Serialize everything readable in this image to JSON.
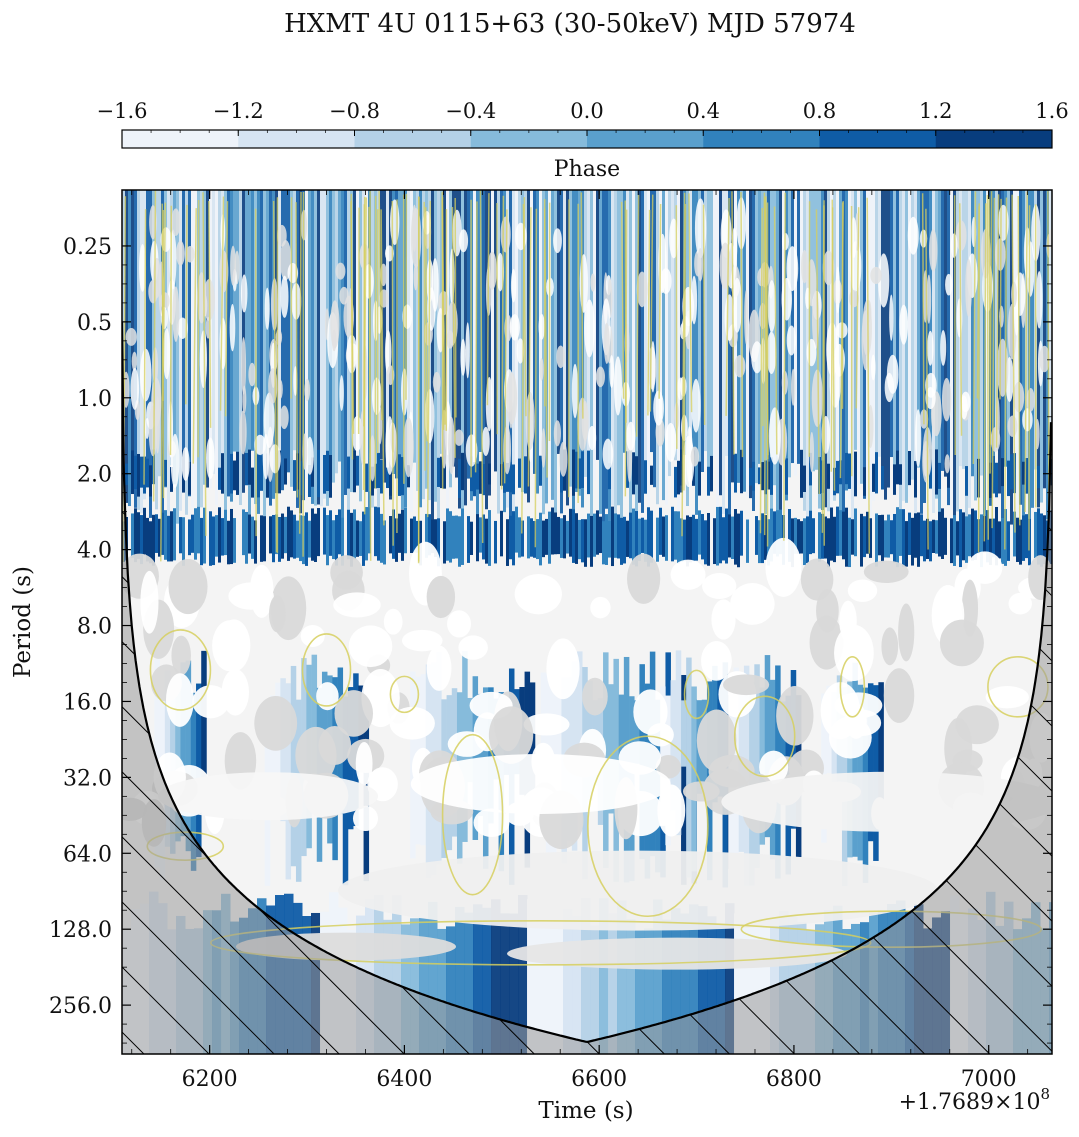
{
  "chart_data": {
    "type": "heatmap",
    "title": "HXMT 4U 0115+63 (30-50keV) MJD 57974",
    "xlabel": "Time (s)",
    "ylabel": "Period (s)",
    "x_offset_label": "+1.7689×10",
    "x_offset_exponent": "8",
    "xlim": [
      6110,
      7065
    ],
    "ylim_period": [
      0.15,
      400
    ],
    "y_scale": "log2",
    "x_ticks": [
      6200,
      6400,
      6600,
      6800,
      7000
    ],
    "x_tick_labels": [
      "6200",
      "6400",
      "6600",
      "6800",
      "7000"
    ],
    "y_ticks": [
      0.25,
      0.5,
      1.0,
      2.0,
      4.0,
      8.0,
      16.0,
      32.0,
      64.0,
      128.0,
      256.0
    ],
    "y_tick_labels": [
      "0.25",
      "0.5",
      "1.0",
      "2.0",
      "4.0",
      "8.0",
      "16.0",
      "32.0",
      "64.0",
      "128.0",
      "256.0"
    ],
    "colorbar": {
      "label": "Phase",
      "range": [
        -1.6,
        1.6
      ],
      "ticks": [
        -1.6,
        -1.2,
        -0.8,
        -0.4,
        0.0,
        0.4,
        0.8,
        1.2,
        1.6
      ],
      "tick_labels": [
        "−1.6",
        "−1.2",
        "−0.8",
        "−0.4",
        "0.0",
        "0.4",
        "0.8",
        "1.2",
        "1.6"
      ],
      "colors": [
        "#eef3fa",
        "#d6e4f2",
        "#b4d1e7",
        "#86bbdb",
        "#5aa0cd",
        "#3182bd",
        "#0f5ca6",
        "#083d7e"
      ]
    },
    "band_periods_s": [
      2.0,
      4.0
    ],
    "cone_of_influence_center": 6588,
    "cone_of_influence_min_period": 360,
    "colors": {
      "significance_contour": "#d6cf5e",
      "coi_line": "#000000",
      "hatch": "#000000",
      "power_gray": "#9a9a9a"
    }
  }
}
